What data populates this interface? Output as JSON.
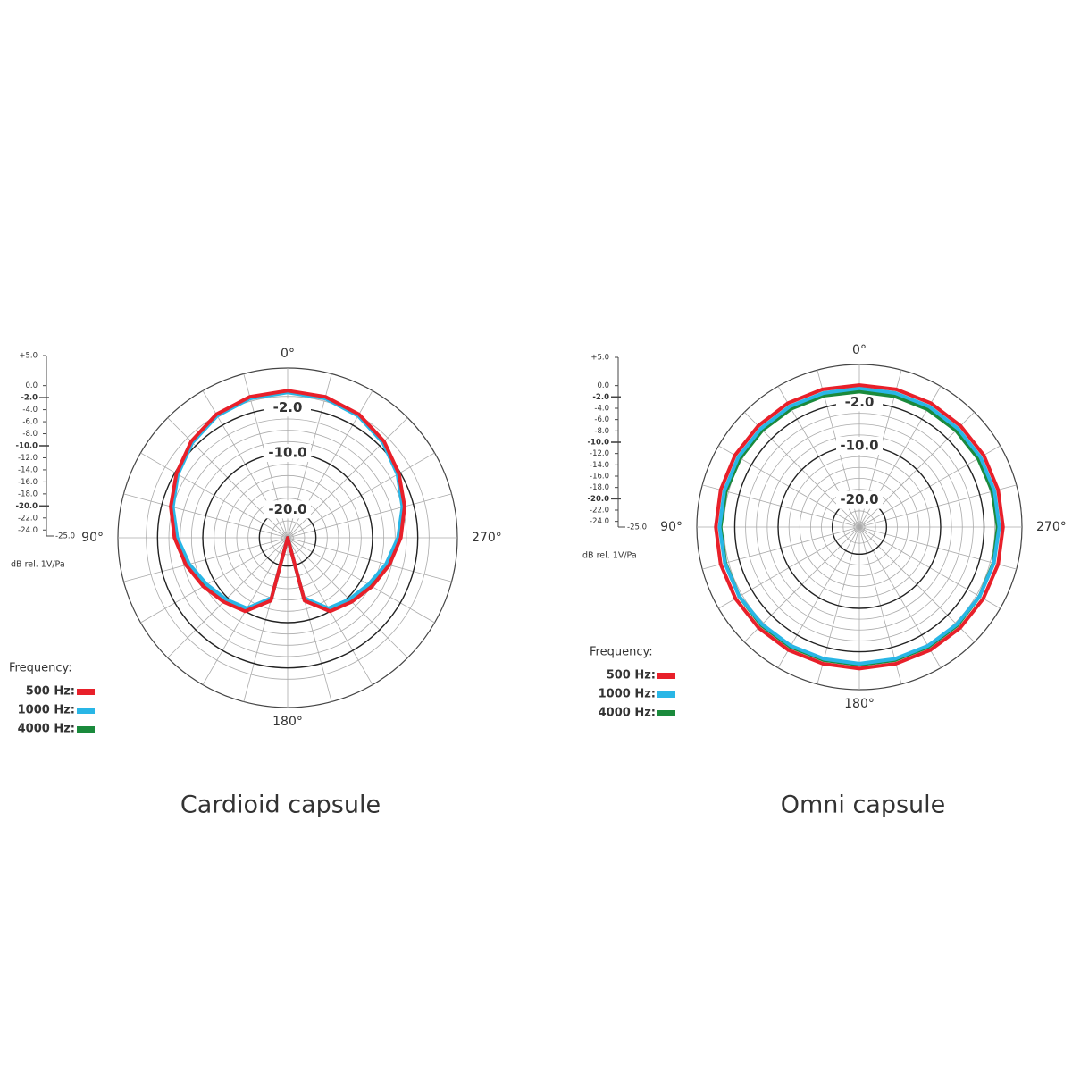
{
  "chart_data": [
    {
      "type": "polar",
      "title": "Cardioid capsule",
      "theta": [
        0,
        15,
        30,
        45,
        60,
        75,
        90,
        105,
        120,
        135,
        150,
        165,
        180,
        195,
        210,
        225,
        240,
        255,
        270,
        285,
        300,
        315,
        330,
        345
      ],
      "thetaticks": [
        {
          "value": 0,
          "label": "0°"
        },
        {
          "value": 90,
          "label": "90°"
        },
        {
          "value": 180,
          "label": "180°"
        },
        {
          "value": 270,
          "label": "270°"
        }
      ],
      "rlim": [
        -25,
        5
      ],
      "rticks": [
        {
          "value": 5,
          "label": "+5.0"
        },
        {
          "value": 0,
          "label": "0.0"
        },
        {
          "value": -2,
          "label": "-2.0"
        },
        {
          "value": -4,
          "label": "-4.0"
        },
        {
          "value": -6,
          "label": "-6.0"
        },
        {
          "value": -8,
          "label": "-8.0"
        },
        {
          "value": -10,
          "label": "-10.0"
        },
        {
          "value": -12,
          "label": "-12.0"
        },
        {
          "value": -14,
          "label": "-14.0"
        },
        {
          "value": -16,
          "label": "-16.0"
        },
        {
          "value": -18,
          "label": "-18.0"
        },
        {
          "value": -20,
          "label": "-20.0"
        },
        {
          "value": -22,
          "label": "-22.0"
        },
        {
          "value": -24,
          "label": "-24.0"
        },
        {
          "value": -25,
          "label": "-25.0"
        }
      ],
      "ring_labels": [
        {
          "value": -2,
          "label": "-2.0"
        },
        {
          "value": -10,
          "label": "-10.0"
        },
        {
          "value": -20,
          "label": "-20.0"
        }
      ],
      "r_axis_label": "dB rel. 1V/Pa",
      "legend_title": "Frequency:",
      "series": [
        {
          "name": "4000 Hz:",
          "color": "#1a8a3c",
          "values": [
            0.9,
            0.7,
            0.1,
            -1.0,
            -2.4,
            -3.8,
            -5.3,
            -6.8,
            -8.2,
            -9.4,
            -10.4,
            -13.8,
            -25,
            -13.8,
            -10.4,
            -9.4,
            -8.2,
            -6.8,
            -5.3,
            -3.8,
            -2.4,
            -1.0,
            0.1,
            0.7
          ]
        },
        {
          "name": "1000 Hz:",
          "color": "#29b6e6",
          "values": [
            0.7,
            0.5,
            -0.1,
            -1.2,
            -2.6,
            -4.0,
            -5.5,
            -7.0,
            -8.5,
            -9.6,
            -10.6,
            -14.0,
            -25,
            -14.0,
            -10.6,
            -9.6,
            -8.5,
            -7.0,
            -5.5,
            -4.0,
            -2.6,
            -1.2,
            -0.1,
            0.5
          ]
        },
        {
          "name": "500 Hz:",
          "color": "#e8202a",
          "values": [
            1.0,
            0.8,
            0.2,
            -0.9,
            -2.3,
            -3.6,
            -5.0,
            -6.4,
            -7.8,
            -9.0,
            -10.0,
            -13.5,
            -25,
            -13.5,
            -10.0,
            -9.0,
            -7.8,
            -6.4,
            -5.0,
            -3.6,
            -2.3,
            -0.9,
            0.2,
            0.8
          ]
        }
      ]
    },
    {
      "type": "polar",
      "title": "Omni capsule",
      "theta": [
        0,
        15,
        30,
        45,
        60,
        75,
        90,
        105,
        120,
        135,
        150,
        165,
        180,
        195,
        210,
        225,
        240,
        255,
        270,
        285,
        300,
        315,
        330,
        345
      ],
      "thetaticks": [
        {
          "value": 0,
          "label": "0°"
        },
        {
          "value": 90,
          "label": "90°"
        },
        {
          "value": 180,
          "label": "180°"
        },
        {
          "value": 270,
          "label": "270°"
        }
      ],
      "rlim": [
        -25,
        5
      ],
      "rticks": [
        {
          "value": 5,
          "label": "+5.0"
        },
        {
          "value": 0,
          "label": "0.0"
        },
        {
          "value": -2,
          "label": "-2.0"
        },
        {
          "value": -4,
          "label": "-4.0"
        },
        {
          "value": -6,
          "label": "-6.0"
        },
        {
          "value": -8,
          "label": "-8.0"
        },
        {
          "value": -10,
          "label": "-10.0"
        },
        {
          "value": -12,
          "label": "-12.0"
        },
        {
          "value": -14,
          "label": "-14.0"
        },
        {
          "value": -16,
          "label": "-16.0"
        },
        {
          "value": -18,
          "label": "-18.0"
        },
        {
          "value": -20,
          "label": "-20.0"
        },
        {
          "value": -22,
          "label": "-22.0"
        },
        {
          "value": -24,
          "label": "-24.0"
        },
        {
          "value": -25,
          "label": "-25.0"
        }
      ],
      "ring_labels": [
        {
          "value": -2,
          "label": "-2.0"
        },
        {
          "value": -10,
          "label": "-10.0"
        },
        {
          "value": -20,
          "label": "-20.0"
        }
      ],
      "r_axis_label": "dB rel. 1V/Pa",
      "legend_title": "Frequency:",
      "series": [
        {
          "name": "4000 Hz:",
          "color": "#1a8a3c",
          "values": [
            0.0,
            0.1,
            0.2,
            0.3,
            0.4,
            0.5,
            0.6,
            0.6,
            0.6,
            0.6,
            0.5,
            0.4,
            0.4,
            0.4,
            0.5,
            0.6,
            0.6,
            0.6,
            0.5,
            0.4,
            0.3,
            0.2,
            0.1,
            0.0
          ]
        },
        {
          "name": "1000 Hz:",
          "color": "#29b6e6",
          "values": [
            0.6,
            0.6,
            0.7,
            0.7,
            0.8,
            0.8,
            0.8,
            0.7,
            0.6,
            0.4,
            0.3,
            0.2,
            0.2,
            0.2,
            0.3,
            0.4,
            0.6,
            0.7,
            0.8,
            0.8,
            0.8,
            0.7,
            0.7,
            0.6
          ]
        },
        {
          "name": "500 Hz:",
          "color": "#e8202a",
          "values": [
            1.2,
            1.3,
            1.4,
            1.4,
            1.5,
            1.5,
            1.5,
            1.5,
            1.4,
            1.3,
            1.2,
            1.1,
            1.1,
            1.1,
            1.2,
            1.3,
            1.4,
            1.5,
            1.5,
            1.5,
            1.5,
            1.4,
            1.4,
            1.3
          ]
        }
      ]
    }
  ]
}
